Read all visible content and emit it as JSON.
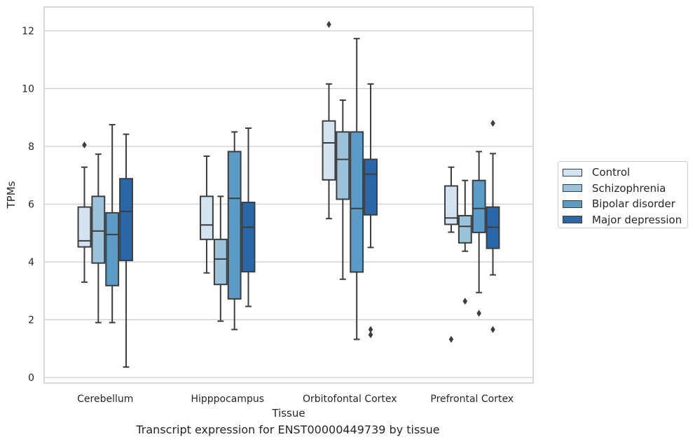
{
  "chart_data": {
    "type": "box",
    "title": "Transcript expression for ENST00000449739 by tissue",
    "xlabel": "Tissue",
    "ylabel": "TPMs",
    "ylim": [
      -0.2,
      12.8
    ],
    "yticks": [
      0,
      2,
      4,
      6,
      8,
      10,
      12
    ],
    "grid": true,
    "legend_position": "right",
    "categories": [
      "Cerebellum",
      "Hipppocampus",
      "Orbitofontal Cortex",
      "Prefrontal Cortex"
    ],
    "series": [
      {
        "name": "Control",
        "color": "#d4e3f1",
        "boxes": [
          {
            "whislo": 3.3,
            "q1": 4.52,
            "med": 4.73,
            "q3": 5.9,
            "whishi": 7.28,
            "fliers": [
              8.05
            ]
          },
          {
            "whislo": 3.62,
            "q1": 4.78,
            "med": 5.28,
            "q3": 6.27,
            "whishi": 7.66,
            "fliers": []
          },
          {
            "whislo": 5.5,
            "q1": 6.84,
            "med": 8.12,
            "q3": 8.88,
            "whishi": 10.16,
            "fliers": [
              12.22
            ]
          },
          {
            "whislo": 5.03,
            "q1": 5.3,
            "med": 5.52,
            "q3": 6.63,
            "whishi": 7.28,
            "fliers": [
              1.32
            ]
          }
        ]
      },
      {
        "name": "Schizophrenia",
        "color": "#9cc3dc",
        "boxes": [
          {
            "whislo": 1.9,
            "q1": 3.96,
            "med": 5.07,
            "q3": 6.27,
            "whishi": 7.73,
            "fliers": []
          },
          {
            "whislo": 1.95,
            "q1": 3.22,
            "med": 4.1,
            "q3": 4.78,
            "whishi": 6.27,
            "fliers": []
          },
          {
            "whislo": 3.4,
            "q1": 6.17,
            "med": 7.55,
            "q3": 8.5,
            "whishi": 9.6,
            "fliers": []
          },
          {
            "whislo": 4.37,
            "q1": 4.66,
            "med": 5.23,
            "q3": 5.6,
            "whishi": 6.82,
            "fliers": [
              2.64
            ]
          }
        ]
      },
      {
        "name": "Bipolar disorder",
        "color": "#5a9bc7",
        "boxes": [
          {
            "whislo": 1.9,
            "q1": 3.18,
            "med": 4.95,
            "q3": 5.7,
            "whishi": 8.75,
            "fliers": []
          },
          {
            "whislo": 1.66,
            "q1": 2.72,
            "med": 6.2,
            "q3": 7.82,
            "whishi": 8.5,
            "fliers": []
          },
          {
            "whislo": 1.32,
            "q1": 3.65,
            "med": 5.85,
            "q3": 8.5,
            "whishi": 11.73,
            "fliers": []
          },
          {
            "whislo": 2.94,
            "q1": 5.02,
            "med": 5.85,
            "q3": 6.82,
            "whishi": 7.82,
            "fliers": [
              2.22
            ]
          }
        ]
      },
      {
        "name": "Major depression",
        "color": "#2967a8",
        "boxes": [
          {
            "whislo": 0.36,
            "q1": 4.05,
            "med": 5.75,
            "q3": 6.88,
            "whishi": 8.42,
            "fliers": []
          },
          {
            "whislo": 2.46,
            "q1": 3.66,
            "med": 5.2,
            "q3": 6.06,
            "whishi": 8.63,
            "fliers": []
          },
          {
            "whislo": 4.5,
            "q1": 5.63,
            "med": 7.04,
            "q3": 7.55,
            "whishi": 10.16,
            "fliers": [
              1.48,
              1.66
            ]
          },
          {
            "whislo": 3.55,
            "q1": 4.47,
            "med": 5.2,
            "q3": 5.9,
            "whishi": 7.75,
            "fliers": [
              1.66,
              8.8
            ]
          }
        ]
      }
    ]
  }
}
